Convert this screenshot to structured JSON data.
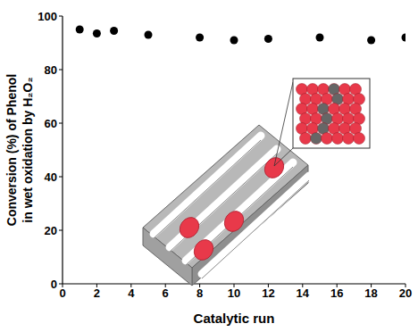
{
  "chart_data": {
    "type": "scatter",
    "x_label": "Catalytic run",
    "y_label": "Conversion (%) of Phenol\nin wet oxidation by H₂O₂",
    "x": [
      1,
      2,
      3,
      5,
      8,
      10,
      12,
      15,
      18,
      20
    ],
    "values": [
      95,
      93.5,
      94.5,
      93,
      92,
      91,
      91.5,
      92,
      91,
      92
    ],
    "color": "#000000",
    "marker": "circle",
    "xlim": [
      0,
      20
    ],
    "ylim": [
      0,
      100
    ],
    "xticks": [
      0,
      2,
      4,
      6,
      8,
      10,
      12,
      14,
      16,
      18,
      20
    ],
    "yticks": [
      0,
      20,
      40,
      60,
      80,
      100
    ],
    "grid": false
  }
}
